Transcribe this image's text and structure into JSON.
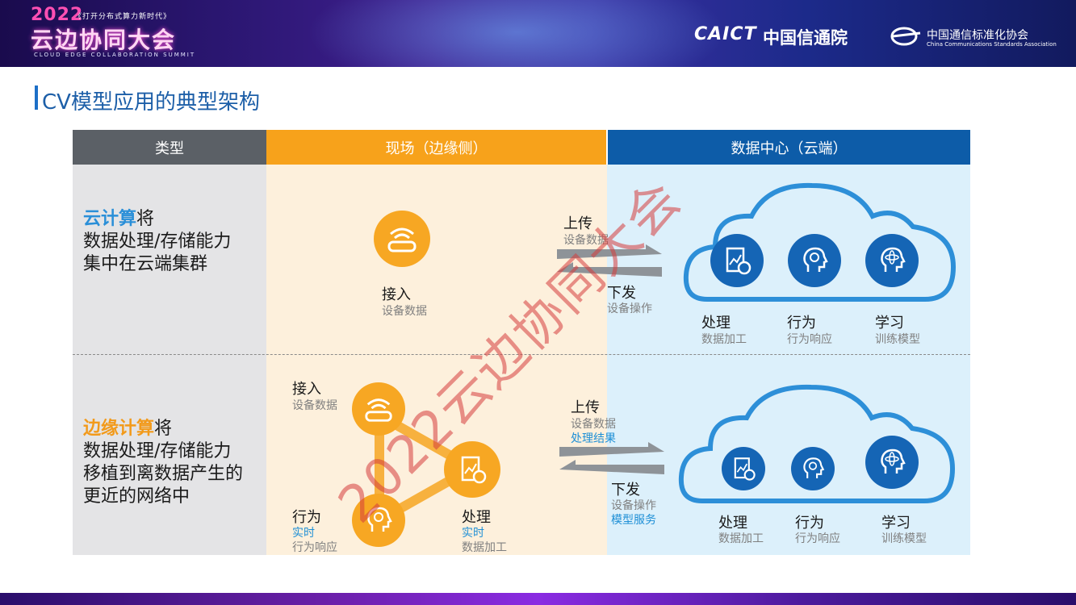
{
  "banner": {
    "logo_year": "2022",
    "logo_slogan": "《打开分布式算力新时代》",
    "logo_title": "云边协同大会",
    "logo_subtitle": "CLOUD EDGE COLLABORATION SUMMIT",
    "caict_en": "CAICT",
    "caict_cn": "中国信通院",
    "ccsa_cn": "中国通信标准化协会",
    "ccsa_en": "China Communications Standards Association"
  },
  "slide": {
    "title": "CV模型应用的典型架构"
  },
  "table": {
    "headers": [
      "类型",
      "现场（边缘侧）",
      "数据中心（云端）"
    ],
    "colors": {
      "type_header": "#5b6066",
      "edge_header": "#f7a21b",
      "cloud_header": "#0d5ca8",
      "type_bg": "#e4e4e6",
      "edge_bg": "#fdf0dc",
      "cloud_bg": "#dcf0fb"
    },
    "cloud_computing": {
      "keyword": "云计算",
      "line1_rest": "将",
      "line2": "数据处理/存储能力",
      "line3": "集中在云端集群"
    },
    "edge_computing": {
      "keyword": "边缘计算",
      "line1_rest": "将",
      "line2": "数据处理/存储能力",
      "line3": "移植到离数据产生的",
      "line4": "更近的网络中"
    }
  },
  "row1": {
    "access": {
      "main": "接入",
      "sub": "设备数据"
    },
    "upload": {
      "main": "上传",
      "sub": "设备数据"
    },
    "download": {
      "main": "下发",
      "sub": "设备操作"
    },
    "cloud_items": [
      {
        "main": "处理",
        "sub": "数据加工",
        "icon": "data-processing-icon"
      },
      {
        "main": "行为",
        "sub": "行为响应",
        "icon": "head-bulb-icon"
      },
      {
        "main": "学习",
        "sub": "训练模型",
        "icon": "head-atom-icon"
      }
    ]
  },
  "row2": {
    "access": {
      "main": "接入",
      "sub": "设备数据"
    },
    "behavior": {
      "main": "行为",
      "tag": "实时",
      "sub": "行为响应"
    },
    "process": {
      "main": "处理",
      "tag": "实时",
      "sub": "数据加工"
    },
    "upload": {
      "main": "上传",
      "sub": "设备数据",
      "extra": "处理结果"
    },
    "download": {
      "main": "下发",
      "sub": "设备操作",
      "extra": "模型服务"
    },
    "cloud_items": [
      {
        "main": "处理",
        "sub": "数据加工",
        "icon": "data-processing-icon"
      },
      {
        "main": "行为",
        "sub": "行为响应",
        "icon": "head-bulb-icon"
      },
      {
        "main": "学习",
        "sub": "训练模型",
        "icon": "head-atom-icon"
      }
    ]
  },
  "watermark": "2022云边协同大会"
}
